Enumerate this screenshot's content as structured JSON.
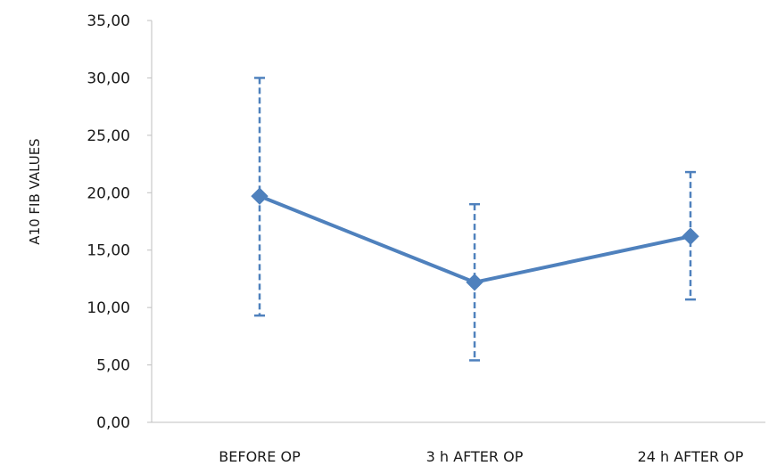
{
  "chart_data": {
    "type": "line",
    "title": "",
    "xlabel": "",
    "ylabel": "A10 FIB  VALUES",
    "categories": [
      "BEFORE OP",
      "3 h AFTER OP",
      "24 h AFTER OP"
    ],
    "series": [
      {
        "values": [
          19.7,
          12.2,
          16.2
        ],
        "error_low": [
          9.3,
          5.4,
          10.7
        ],
        "error_high": [
          30.0,
          19.0,
          21.8
        ]
      }
    ],
    "ylim": [
      0,
      35
    ],
    "yticks": [
      "0,00",
      "5,00",
      "10,00",
      "15,00",
      "20,00",
      "25,00",
      "30,00",
      "35,00"
    ],
    "grid": false,
    "legend": "none",
    "colors": {
      "series": "#4f81bd",
      "axis": "#bfbfbf"
    }
  }
}
